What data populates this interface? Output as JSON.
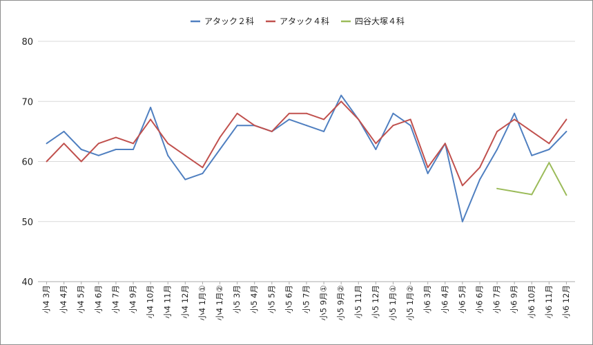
{
  "chart_data": {
    "type": "line",
    "title": "",
    "xlabel": "",
    "ylabel": "",
    "ylim": [
      40,
      80
    ],
    "yticks": [
      40,
      50,
      60,
      70,
      80
    ],
    "grid": true,
    "legend_position": "top",
    "categories": [
      "小4 3月",
      "小4 4月",
      "小4 5月",
      "小4 6月",
      "小4 7月",
      "小4 9月",
      "小4 10月",
      "小4 11月",
      "小4 12月",
      "小4 1月①",
      "小4 1月②",
      "小5 3月",
      "小5 4月",
      "小5 5月",
      "小5 6月",
      "小5 7月",
      "小5 9月①",
      "小5 9月②",
      "小5 11月",
      "小5 12月",
      "小5 1月①",
      "小5 1月②",
      "小6 3月",
      "小6 4月",
      "小6 5月",
      "小6 6月",
      "小6 7月",
      "小6 9月",
      "小6 10月",
      "小6 11月",
      "小6 12月"
    ],
    "series": [
      {
        "name": "アタック２科",
        "color": "#4f7fc0",
        "values": [
          63,
          65,
          62,
          61,
          62,
          62,
          69,
          61,
          57,
          58,
          62,
          66,
          66,
          65,
          67,
          66,
          65,
          71,
          67,
          62,
          68,
          66,
          58,
          63,
          50,
          57,
          62,
          68,
          61,
          62,
          65
        ]
      },
      {
        "name": "アタック４科",
        "color": "#c0504d",
        "values": [
          60,
          63,
          60,
          63,
          64,
          63,
          67,
          63,
          61,
          59,
          64,
          68,
          66,
          65,
          68,
          68,
          67,
          70,
          67,
          63,
          66,
          67,
          59,
          63,
          56,
          59,
          65,
          67,
          65,
          63,
          67
        ]
      },
      {
        "name": "四谷大塚４科",
        "color": "#9bbb59",
        "values": [
          null,
          null,
          null,
          null,
          null,
          null,
          null,
          null,
          null,
          null,
          null,
          null,
          null,
          null,
          null,
          null,
          null,
          null,
          null,
          null,
          null,
          null,
          null,
          null,
          null,
          null,
          55.5,
          55,
          54.5,
          59.8,
          54.4
        ]
      }
    ]
  }
}
